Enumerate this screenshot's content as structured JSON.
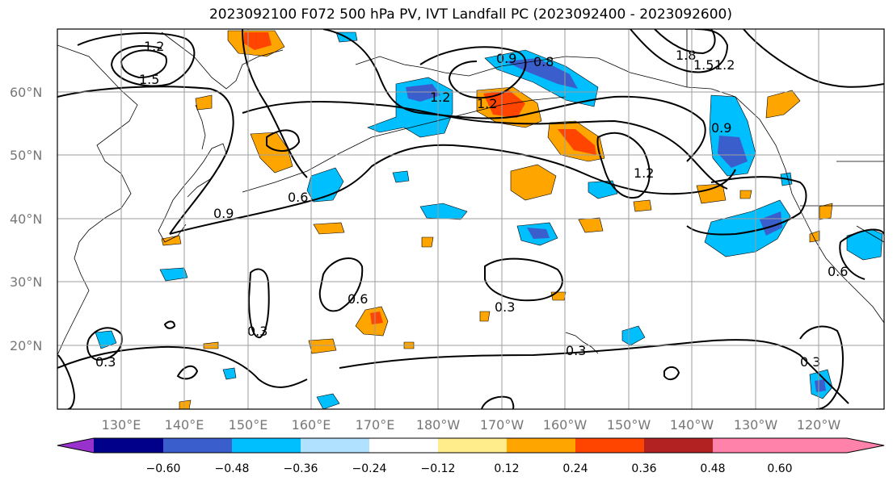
{
  "title": "2023092100 F072 500 hPa PV, IVT Landfall PC (2023092400 - 2023092600)",
  "map": {
    "lat_labels": [
      "60°N",
      "50°N",
      "40°N",
      "30°N",
      "20°N"
    ],
    "lon_labels": [
      "130°E",
      "140°E",
      "150°E",
      "160°E",
      "170°E",
      "180°W",
      "170°W",
      "160°W",
      "150°W",
      "140°W",
      "130°W",
      "120°W"
    ],
    "contour_labels": [
      "1.2",
      "1.5",
      "0.9",
      "1.2",
      "0.8",
      "1.2",
      "1.8",
      "1.5",
      "1.2",
      "0.9",
      "0.9",
      "0.6",
      "1.2",
      "0.3",
      "0.6",
      "0.3",
      "0.3",
      "0.6",
      "0.3",
      "0.3"
    ]
  },
  "colorbar": {
    "ticks": [
      "−0.60",
      "−0.48",
      "−0.36",
      "−0.24",
      "−0.12",
      "0.12",
      "0.24",
      "0.36",
      "0.48",
      "0.60"
    ],
    "colors": [
      "#9932cc",
      "#00008b",
      "#3a5fcd",
      "#00bfff",
      "#b0e2ff",
      "#ffffff",
      "#ffec8b",
      "#ffa500",
      "#ff4500",
      "#b22222",
      "#ff82ab"
    ]
  }
}
